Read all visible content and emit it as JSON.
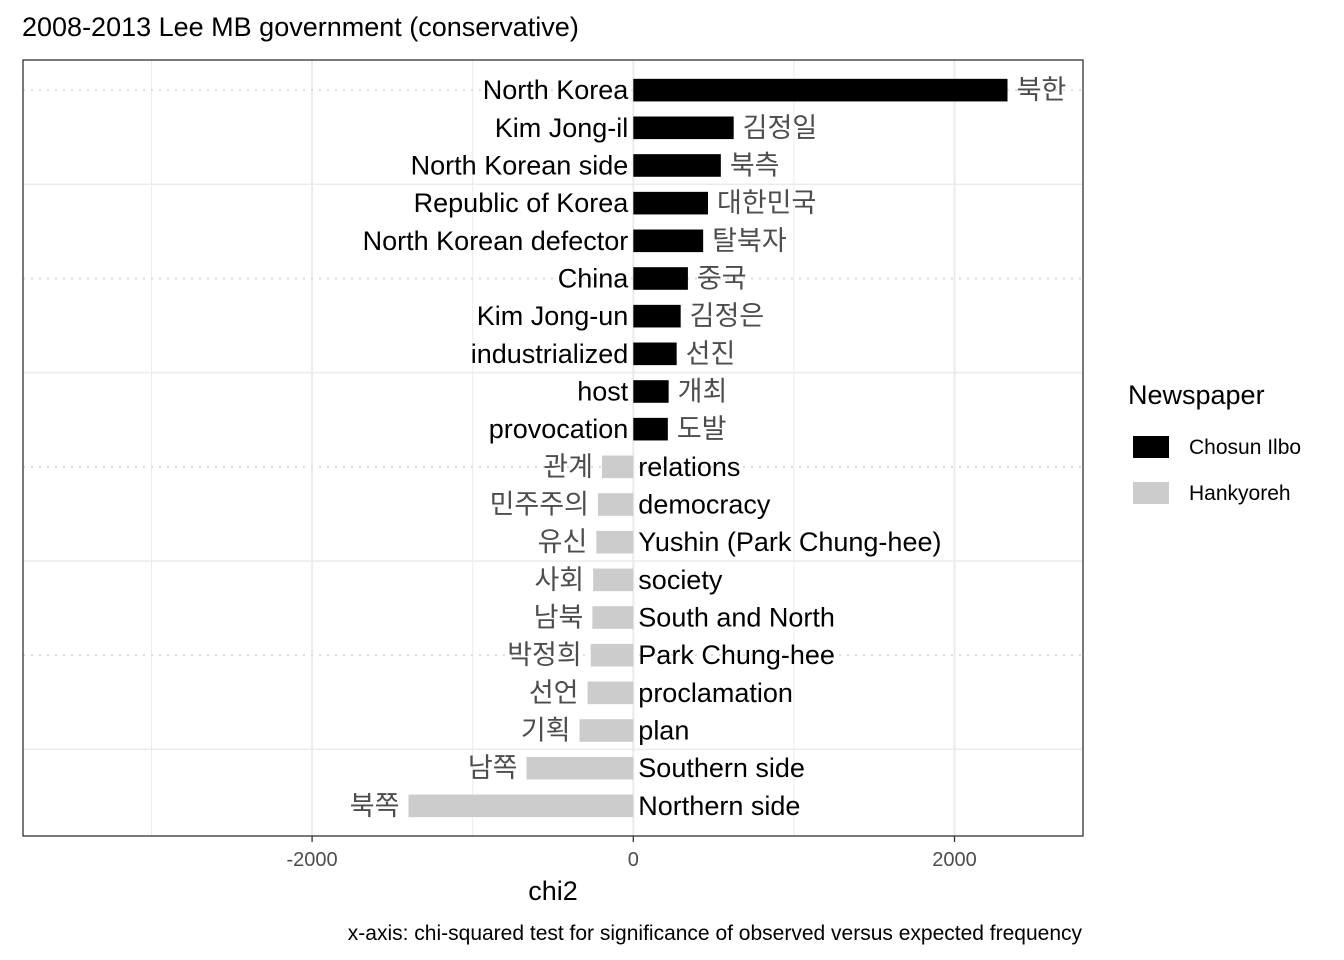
{
  "chart_data": {
    "type": "bar",
    "orientation": "horizontal",
    "title": "2008-2013 Lee MB government (conservative)",
    "xlabel": "chi2",
    "caption": "x-axis: chi-squared test for significance of observed versus expected frequency",
    "xlim": [
      -3800,
      2800
    ],
    "xticks": [
      -2000,
      0,
      2000
    ],
    "xtick_labels": [
      "-2000",
      "0",
      "2000"
    ],
    "grid": true,
    "legend": {
      "title": "Newspaper",
      "position": "right",
      "entries": [
        {
          "label": "Chosun Ilbo",
          "color": "#000000"
        },
        {
          "label": "Hankyoreh",
          "color": "#cccccc"
        }
      ]
    },
    "colors": {
      "Chosun Ilbo": "#000000",
      "Hankyoreh": "#cccccc"
    },
    "bars": [
      {
        "english": "North Korea",
        "korean": "북한",
        "value": 2330,
        "newspaper": "Chosun Ilbo"
      },
      {
        "english": "Kim Jong-il",
        "korean": "김정일",
        "value": 625,
        "newspaper": "Chosun Ilbo"
      },
      {
        "english": "North Korean side",
        "korean": "북측",
        "value": 545,
        "newspaper": "Chosun Ilbo"
      },
      {
        "english": "Republic of Korea",
        "korean": "대한민국",
        "value": 465,
        "newspaper": "Chosun Ilbo"
      },
      {
        "english": "North Korean defector",
        "korean": "탈북자",
        "value": 435,
        "newspaper": "Chosun Ilbo"
      },
      {
        "english": "China",
        "korean": "중국",
        "value": 340,
        "newspaper": "Chosun Ilbo"
      },
      {
        "english": "Kim Jong-un",
        "korean": "김정은",
        "value": 295,
        "newspaper": "Chosun Ilbo"
      },
      {
        "english": "industrialized",
        "korean": "선진",
        "value": 270,
        "newspaper": "Chosun Ilbo"
      },
      {
        "english": "host",
        "korean": "개최",
        "value": 220,
        "newspaper": "Chosun Ilbo"
      },
      {
        "english": "provocation",
        "korean": "도발",
        "value": 215,
        "newspaper": "Chosun Ilbo"
      },
      {
        "english": "relations",
        "korean": "관계",
        "value": -195,
        "newspaper": "Hankyoreh"
      },
      {
        "english": "democracy",
        "korean": "민주주의",
        "value": -220,
        "newspaper": "Hankyoreh"
      },
      {
        "english": "Yushin (Park Chung-hee)",
        "korean": "유신",
        "value": -230,
        "newspaper": "Hankyoreh"
      },
      {
        "english": "society",
        "korean": "사회",
        "value": -250,
        "newspaper": "Hankyoreh"
      },
      {
        "english": "South and North",
        "korean": "남북",
        "value": -255,
        "newspaper": "Hankyoreh"
      },
      {
        "english": "Park Chung-hee",
        "korean": "박정희",
        "value": -265,
        "newspaper": "Hankyoreh"
      },
      {
        "english": "proclamation",
        "korean": "선언",
        "value": -285,
        "newspaper": "Hankyoreh"
      },
      {
        "english": "plan",
        "korean": "기획",
        "value": -335,
        "newspaper": "Hankyoreh"
      },
      {
        "english": "Southern side",
        "korean": "남쪽",
        "value": -665,
        "newspaper": "Hankyoreh"
      },
      {
        "english": "Northern side",
        "korean": "북쪽",
        "value": -1400,
        "newspaper": "Hankyoreh"
      }
    ]
  }
}
